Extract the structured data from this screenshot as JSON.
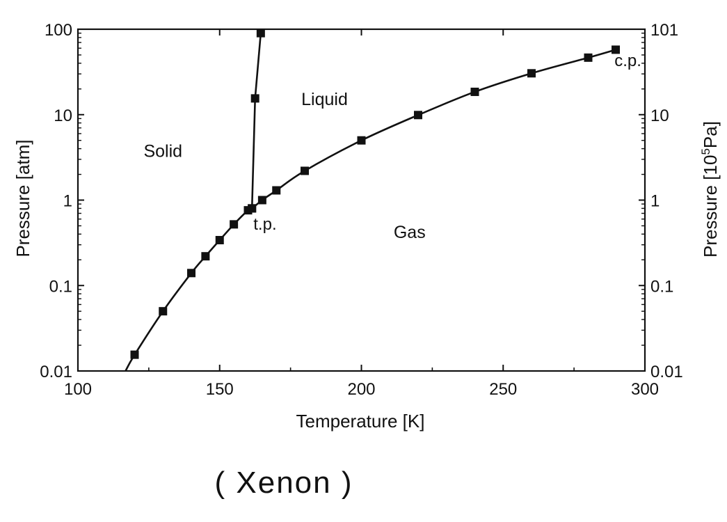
{
  "chart_data": {
    "type": "line",
    "xlabel": "Temperature [K]",
    "ylabel": "Pressure [atm]",
    "ylabel_right_prefix": "Pressure [10",
    "ylabel_right_sup": "5",
    "ylabel_right_suffix": "Pa]",
    "xlim": [
      100,
      300
    ],
    "ylim": [
      0.01,
      100
    ],
    "yscale": "log",
    "x_ticks": [
      "100",
      "150",
      "200",
      "250",
      "300"
    ],
    "y_ticks_left": [
      "0.01",
      "0.1",
      "1",
      "10",
      "100"
    ],
    "y_ticks_right": [
      "0.01",
      "0.1",
      "1",
      "10",
      "101"
    ],
    "grid": false,
    "series": [
      {
        "marker": "square",
        "x": [
          120,
          130,
          140,
          145,
          150,
          155,
          160,
          161.4,
          165,
          170,
          180,
          200,
          220,
          240,
          260,
          280,
          289.7
        ],
        "values": [
          0.0155,
          0.05,
          0.14,
          0.22,
          0.34,
          0.52,
          0.76,
          0.8,
          1.0,
          1.3,
          2.2,
          5.0,
          9.9,
          18.5,
          30.5,
          46.5,
          57.6
        ]
      },
      {
        "marker": "square",
        "x": [
          161.4,
          162.5,
          164.5
        ],
        "values": [
          0.8,
          15.5,
          90
        ]
      }
    ],
    "curve_extension": {
      "x": [
        116.8,
        120
      ],
      "values": [
        0.01,
        0.0155
      ]
    },
    "annotations": [
      {
        "text": "Solid",
        "x": 130,
        "y": 3.2
      },
      {
        "text": "Liquid",
        "x": 187,
        "y": 13
      },
      {
        "text": "Gas",
        "x": 217,
        "y": 0.36
      },
      {
        "text": "t.p.",
        "x": 166,
        "y": 0.45
      },
      {
        "text": "c.p.",
        "x": 294,
        "y": 37
      }
    ]
  },
  "handwritten_note": "( Xenon )"
}
